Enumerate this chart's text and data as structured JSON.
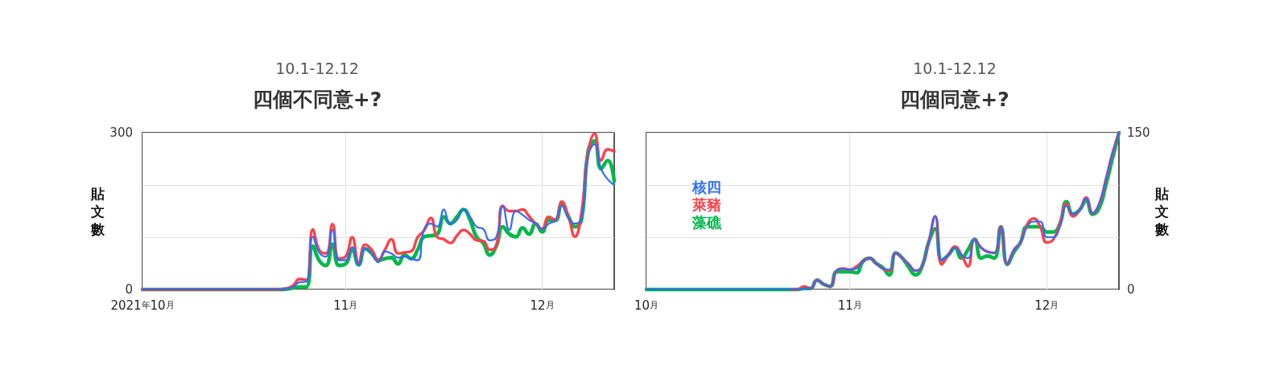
{
  "chart_data": [
    {
      "type": "line",
      "subtitle": "10.1-12.12",
      "title": "四個不同意+?",
      "ylabel": "貼文數",
      "x": [
        "2021-10-01",
        "2021-10-22",
        "2021-10-23",
        "2021-10-24",
        "2021-10-25",
        "2021-10-26",
        "2021-10-27",
        "2021-10-28",
        "2021-10-29",
        "2021-10-30",
        "2021-10-31",
        "2021-11-01",
        "2021-11-02",
        "2021-11-03",
        "2021-11-04",
        "2021-11-05",
        "2021-11-06",
        "2021-11-07",
        "2021-11-08",
        "2021-11-09",
        "2021-11-10",
        "2021-11-11",
        "2021-11-12",
        "2021-11-13",
        "2021-11-14",
        "2021-11-15",
        "2021-11-16",
        "2021-11-17",
        "2021-11-18",
        "2021-11-19",
        "2021-11-20",
        "2021-11-21",
        "2021-11-22",
        "2021-11-23",
        "2021-11-24",
        "2021-11-25",
        "2021-11-26",
        "2021-11-27",
        "2021-11-28",
        "2021-11-29",
        "2021-11-30",
        "2021-12-01",
        "2021-12-02",
        "2021-12-03",
        "2021-12-04",
        "2021-12-05",
        "2021-12-06",
        "2021-12-07",
        "2021-12-08",
        "2021-12-09",
        "2021-12-10",
        "2021-12-11",
        "2021-12-12"
      ],
      "series": [
        {
          "color": "#2f6bff",
          "values": [
            0,
            0,
            2,
            5,
            14,
            15,
            101,
            70,
            63,
            114,
            56,
            56,
            81,
            47,
            79,
            69,
            52,
            73,
            69,
            61,
            63,
            59,
            56,
            116,
            126,
            120,
            153,
            125,
            133,
            153,
            139,
            120,
            116,
            94,
            100,
            159,
            114,
            150,
            143,
            133,
            126,
            116,
            126,
            132,
            160,
            137,
            126,
            137,
            254,
            278,
            231,
            211,
            200
          ]
        },
        {
          "color": "#ff4048",
          "values": [
            0,
            0,
            2,
            8,
            20,
            18,
            115,
            75,
            69,
            125,
            59,
            63,
            100,
            52,
            86,
            76,
            56,
            76,
            96,
            69,
            71,
            73,
            100,
            113,
            137,
            100,
            96,
            89,
            103,
            114,
            106,
            94,
            93,
            76,
            83,
            160,
            150,
            150,
            153,
            140,
            126,
            116,
            139,
            133,
            168,
            140,
            101,
            147,
            261,
            298,
            247,
            268,
            264
          ]
        },
        {
          "color": "#00b84a",
          "values": [
            0,
            0,
            1,
            3,
            5,
            5,
            83,
            55,
            46,
            87,
            46,
            49,
            76,
            47,
            78,
            69,
            56,
            59,
            61,
            49,
            66,
            59,
            76,
            101,
            103,
            106,
            139,
            126,
            139,
            153,
            133,
            100,
            89,
            66,
            83,
            120,
            106,
            101,
            118,
            106,
            126,
            110,
            133,
            132,
            163,
            140,
            120,
            133,
            264,
            284,
            231,
            247,
            207
          ]
        }
      ],
      "xlim": [
        "2021-10-01",
        "2021-12-12"
      ],
      "xticks": [
        {
          "value": "2021-10-01",
          "label": "2021年10月"
        },
        {
          "value": "2021-11-01",
          "label": "11月"
        },
        {
          "value": "2021-12-01",
          "label": "12月"
        }
      ],
      "ylim": [
        0,
        300
      ],
      "yticks": [
        0,
        {
          "value": 100,
          "label": null
        },
        {
          "value": 200,
          "label": null
        },
        300
      ],
      "grid": true,
      "legend": false,
      "marker": "none",
      "line_style": "solid"
    },
    {
      "type": "line",
      "subtitle": "10.1-12.12",
      "title": "四個同意+?",
      "y2label": "貼文數",
      "x": [
        "2021-10-01",
        "2021-10-22",
        "2021-10-23",
        "2021-10-24",
        "2021-10-25",
        "2021-10-26",
        "2021-10-27",
        "2021-10-28",
        "2021-10-29",
        "2021-10-30",
        "2021-10-31",
        "2021-11-01",
        "2021-11-02",
        "2021-11-03",
        "2021-11-04",
        "2021-11-05",
        "2021-11-06",
        "2021-11-07",
        "2021-11-08",
        "2021-11-09",
        "2021-11-10",
        "2021-11-11",
        "2021-11-12",
        "2021-11-13",
        "2021-11-14",
        "2021-11-15",
        "2021-11-16",
        "2021-11-17",
        "2021-11-18",
        "2021-11-19",
        "2021-11-20",
        "2021-11-21",
        "2021-11-22",
        "2021-11-23",
        "2021-11-24",
        "2021-11-25",
        "2021-11-26",
        "2021-11-27",
        "2021-11-28",
        "2021-11-29",
        "2021-11-30",
        "2021-12-01",
        "2021-12-02",
        "2021-12-03",
        "2021-12-04",
        "2021-12-05",
        "2021-12-06",
        "2021-12-07",
        "2021-12-08",
        "2021-12-09",
        "2021-12-10",
        "2021-12-11",
        "2021-12-12"
      ],
      "series": [
        {
          "name": "核四",
          "color": "#2f6bff",
          "axis": "y2",
          "values": [
            0,
            0,
            0,
            0,
            1,
            1,
            9,
            5,
            3,
            18,
            20,
            19,
            20,
            27,
            30,
            25,
            20,
            19,
            35,
            30,
            24,
            18,
            22,
            45,
            70,
            28,
            33,
            40,
            33,
            30,
            48,
            40,
            36,
            35,
            60,
            24,
            38,
            45,
            60,
            65,
            65,
            50,
            50,
            60,
            80,
            72,
            76,
            87,
            73,
            82,
            105,
            130,
            150
          ]
        },
        {
          "name": "萊豬",
          "color": "#ff4048",
          "axis": "y2",
          "values": [
            null,
            null,
            0,
            0,
            3,
            1,
            9,
            5,
            3,
            18,
            20,
            19,
            22,
            27,
            30,
            25,
            20,
            18,
            35,
            30,
            24,
            18,
            22,
            45,
            70,
            24,
            33,
            41,
            33,
            22,
            48,
            40,
            36,
            35,
            60,
            24,
            38,
            45,
            62,
            68,
            60,
            45,
            48,
            63,
            82,
            70,
            76,
            88,
            73,
            82,
            105,
            130,
            150
          ]
        },
        {
          "name": "藻礁",
          "color": "#00b84a",
          "axis": "y2",
          "values": [
            0,
            0,
            0,
            0,
            1,
            1,
            9,
            5,
            3,
            17,
            17,
            17,
            16,
            27,
            30,
            25,
            21,
            14,
            35,
            30,
            21,
            14,
            22,
            45,
            58,
            28,
            33,
            40,
            30,
            38,
            48,
            30,
            32,
            30,
            60,
            24,
            36,
            45,
            60,
            60,
            60,
            55,
            55,
            63,
            84,
            72,
            76,
            85,
            72,
            78,
            100,
            125,
            150
          ]
        }
      ],
      "xlim": [
        "2021-10-01",
        "2021-12-12"
      ],
      "xticks": [
        {
          "value": "2021-10-01",
          "label": "10月"
        },
        {
          "value": "2021-11-01",
          "label": "11月"
        },
        {
          "value": "2021-12-01",
          "label": "12月"
        }
      ],
      "y2lim": [
        0,
        150
      ],
      "y2ticks": [
        0,
        {
          "value": 50,
          "label": null
        },
        {
          "value": 100,
          "label": null
        },
        150
      ],
      "grid": true,
      "legend": "top left",
      "marker": "none",
      "line_style": "solid"
    }
  ]
}
